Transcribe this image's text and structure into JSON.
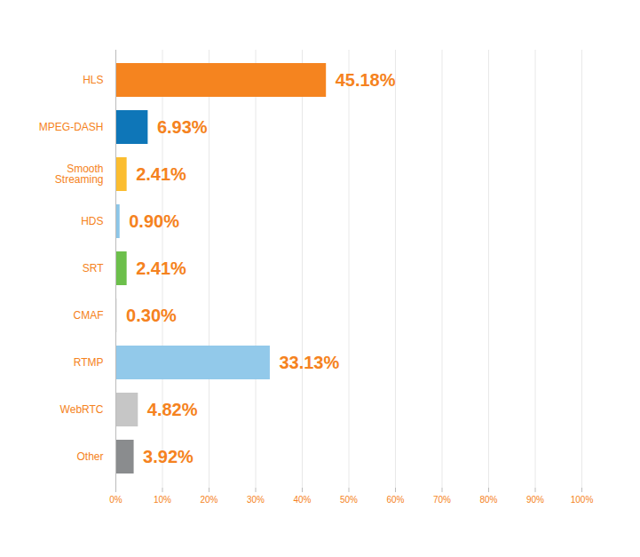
{
  "chart_data": {
    "type": "bar",
    "orientation": "horizontal",
    "categories": [
      "HLS",
      "MPEG-DASH",
      "Smooth Streaming",
      "HDS",
      "SRT",
      "CMAF",
      "RTMP",
      "WebRTC",
      "Other"
    ],
    "values": [
      45.18,
      6.93,
      2.41,
      0.9,
      2.41,
      0.3,
      33.13,
      4.82,
      3.92
    ],
    "value_labels": [
      "45.18%",
      "6.93%",
      "2.41%",
      "0.90%",
      "2.41%",
      "0.30%",
      "33.13%",
      "4.82%",
      "3.92%"
    ],
    "colors": [
      "#f5841f",
      "#0e76b8",
      "#fbbd30",
      "#8cc6e8",
      "#6cbf4b",
      "#e3e3e3",
      "#92c9ea",
      "#c6c6c6",
      "#8a8c8e"
    ],
    "xlim": [
      0,
      100
    ],
    "xticks": [
      {
        "value": 0,
        "label": "0%"
      },
      {
        "value": 10,
        "label": "10%"
      },
      {
        "value": 20,
        "label": "20%"
      },
      {
        "value": 30,
        "label": "30%"
      },
      {
        "value": 40,
        "label": "40%"
      },
      {
        "value": 50,
        "label": "50%"
      },
      {
        "value": 60,
        "label": "60%"
      },
      {
        "value": 70,
        "label": "70%"
      },
      {
        "value": 80,
        "label": "80%"
      },
      {
        "value": 90,
        "label": "90%"
      },
      {
        "value": 100,
        "label": "100%"
      }
    ],
    "grid": true,
    "data_labels": true
  }
}
